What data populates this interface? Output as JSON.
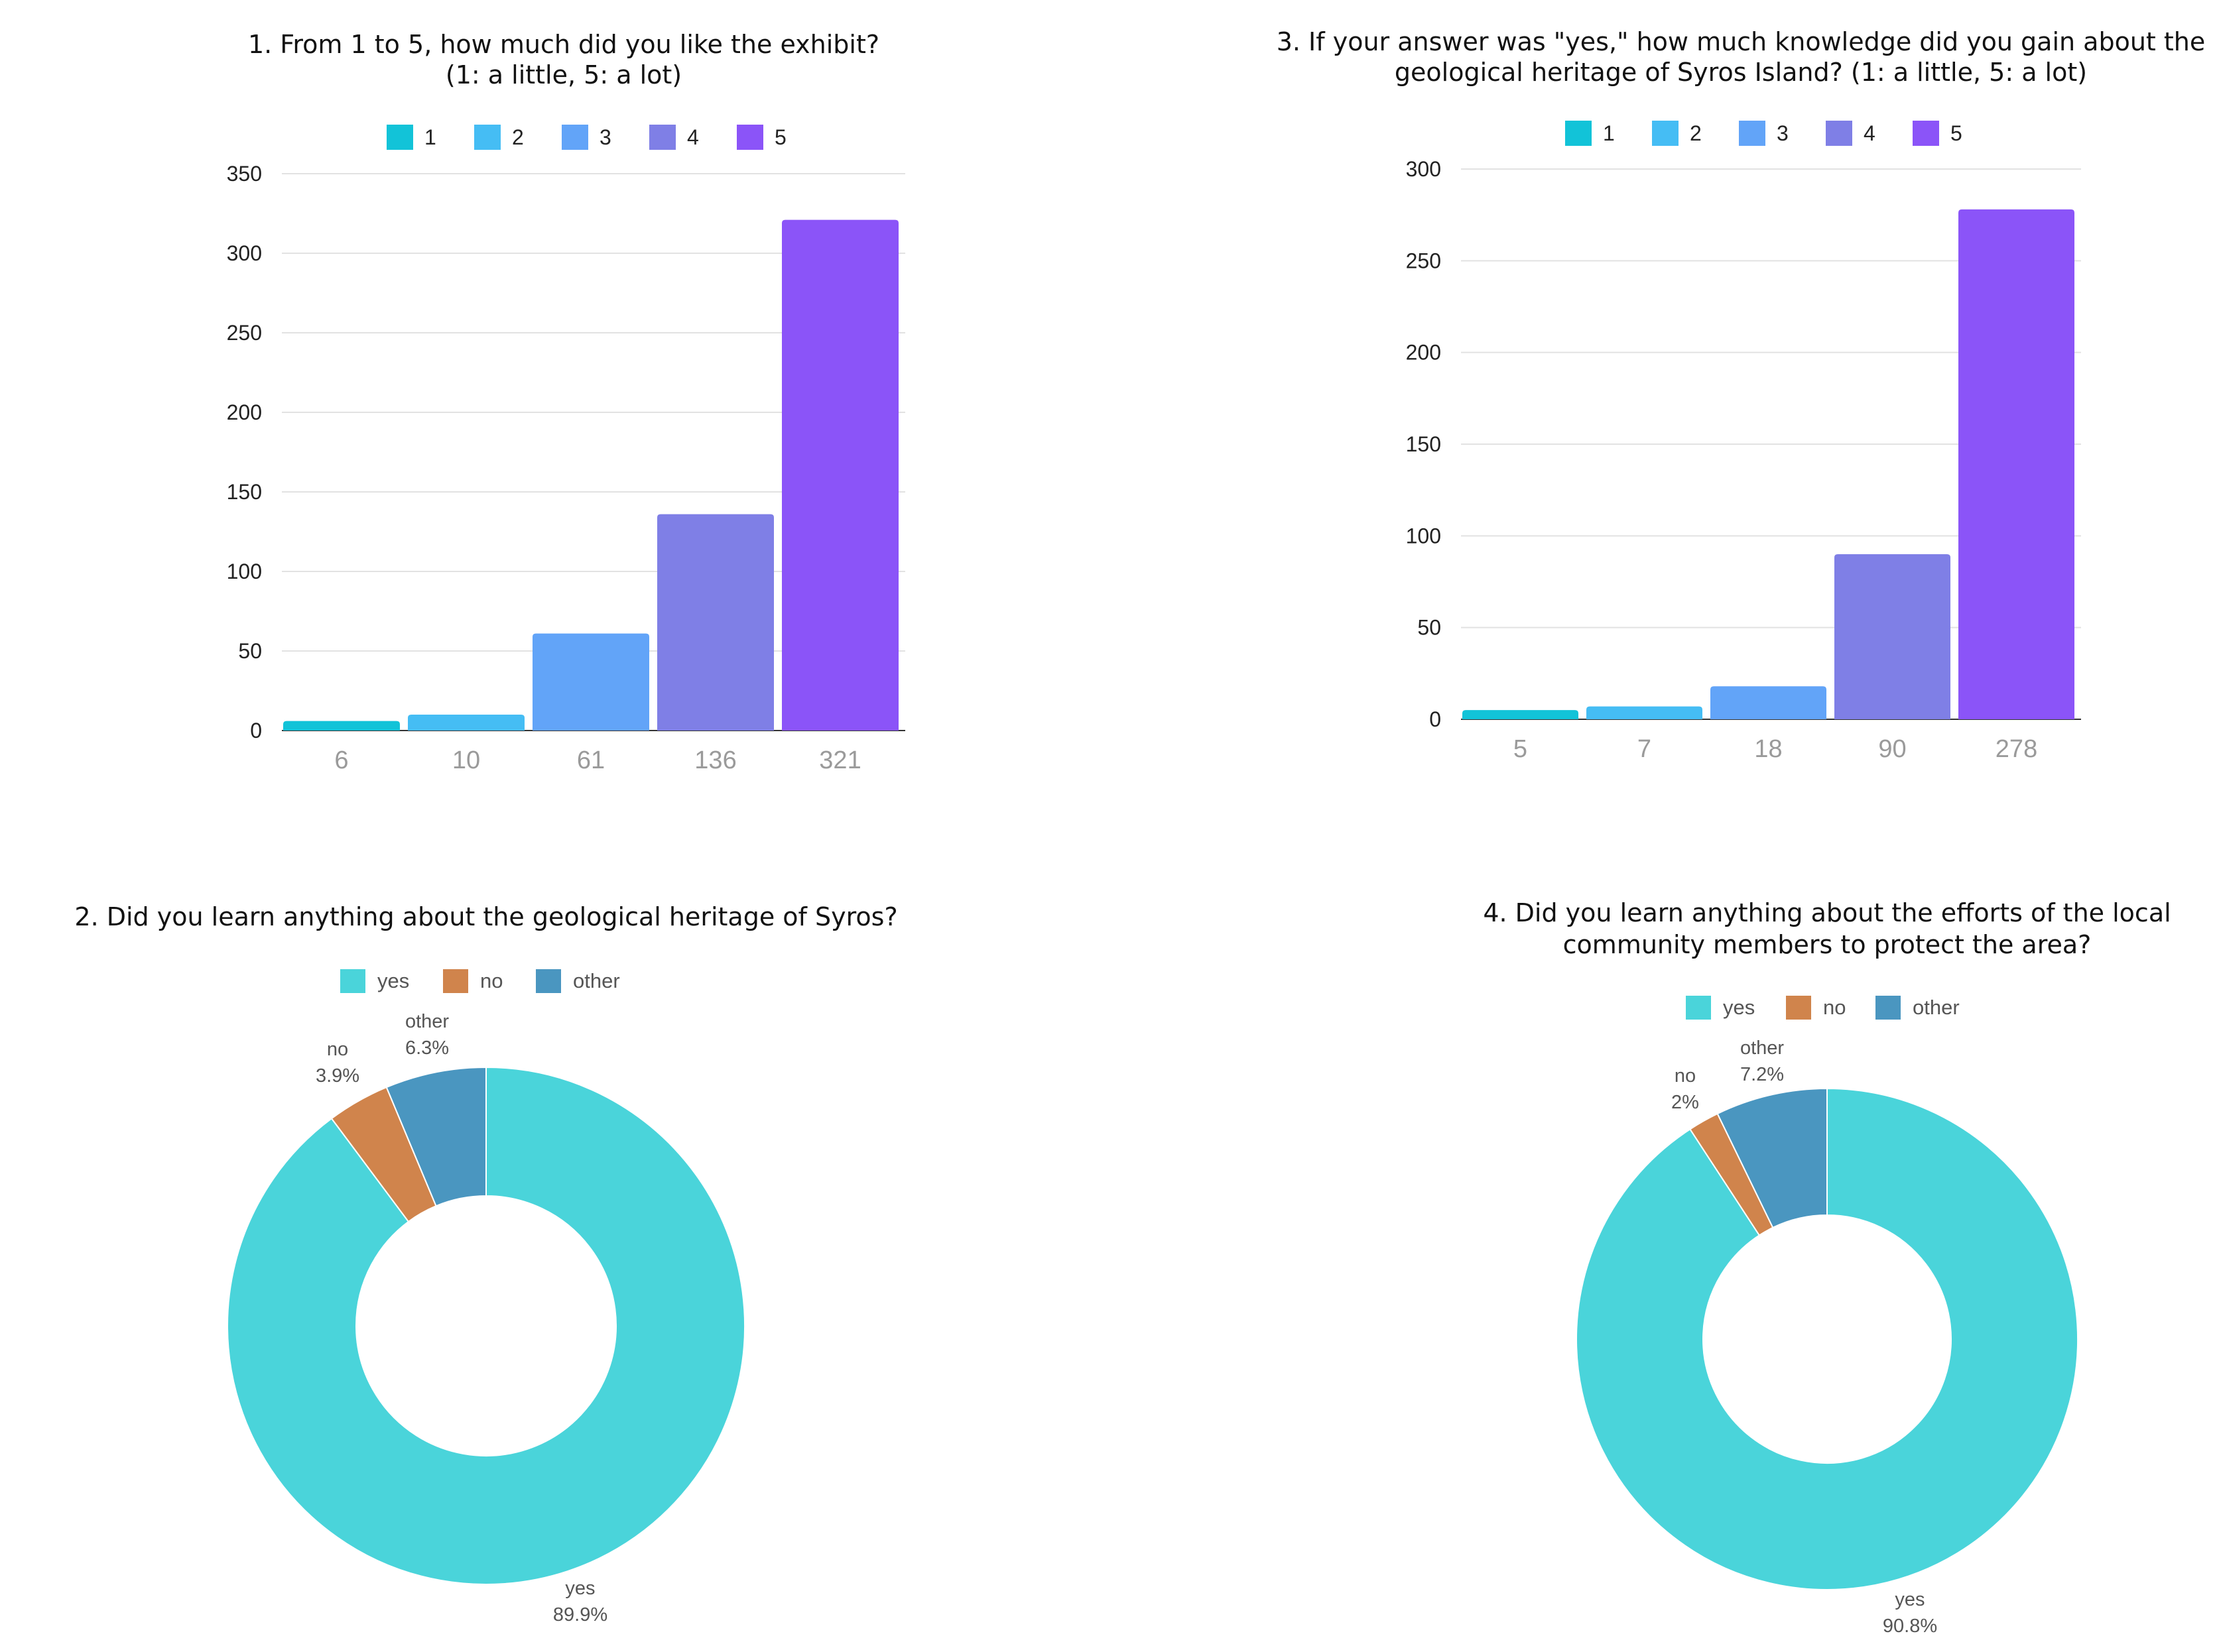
{
  "chart_data": [
    {
      "type": "bar",
      "title_lines": [
        "1. From 1 to 5, how much did you like the exhibit?",
        "(1: a little, 5: a lot)"
      ],
      "legend": [
        "1",
        "2",
        "3",
        "4",
        "5"
      ],
      "categories": [
        "6",
        "10",
        "61",
        "136",
        "321"
      ],
      "values": [
        6,
        10,
        61,
        136,
        321
      ],
      "colors": [
        "#12c3d8",
        "#45bdf4",
        "#62a4f8",
        "#7f7fe6",
        "#8b54f8"
      ],
      "yticks": [
        "0",
        "50",
        "100",
        "150",
        "200",
        "250",
        "300",
        "350"
      ],
      "ylim": [
        0,
        350
      ],
      "grid": true
    },
    {
      "type": "bar",
      "title_lines": [
        "3. If your answer was \"yes,\" how much knowledge did you gain about the",
        "geological heritage of Syros Island? (1: a little, 5: a lot)"
      ],
      "legend": [
        "1",
        "2",
        "3",
        "4",
        "5"
      ],
      "categories": [
        "5",
        "7",
        "18",
        "90",
        "278"
      ],
      "values": [
        5,
        7,
        18,
        90,
        278
      ],
      "colors": [
        "#12c3d8",
        "#45bdf4",
        "#62a4f8",
        "#7f7fe6",
        "#8b54f8"
      ],
      "yticks": [
        "0",
        "50",
        "100",
        "150",
        "200",
        "250",
        "300"
      ],
      "ylim": [
        0,
        300
      ],
      "grid": true
    },
    {
      "type": "pie",
      "donut": true,
      "title_lines": [
        "2. Did you learn anything about the geological heritage of Syros?"
      ],
      "legend": [
        "yes",
        "no",
        "other"
      ],
      "slices": [
        {
          "label": "yes",
          "percent_text": "89.9%",
          "value": 89.9,
          "color": "#4ad4da"
        },
        {
          "label": "no",
          "percent_text": "3.9%",
          "value": 3.9,
          "color": "#d0844c"
        },
        {
          "label": "other",
          "percent_text": "6.3%",
          "value": 6.3,
          "color": "#4a96c0"
        }
      ]
    },
    {
      "type": "pie",
      "donut": true,
      "title_lines": [
        "4. Did you learn anything about the efforts of the local",
        "community members to protect the area?"
      ],
      "legend": [
        "yes",
        "no",
        "other"
      ],
      "slices": [
        {
          "label": "yes",
          "percent_text": "90.8%",
          "value": 90.8,
          "color": "#4ad4da"
        },
        {
          "label": "no",
          "percent_text": "2%",
          "value": 2,
          "color": "#d0844c"
        },
        {
          "label": "other",
          "percent_text": "7.2%",
          "value": 7.2,
          "color": "#4a96c0"
        }
      ]
    }
  ]
}
